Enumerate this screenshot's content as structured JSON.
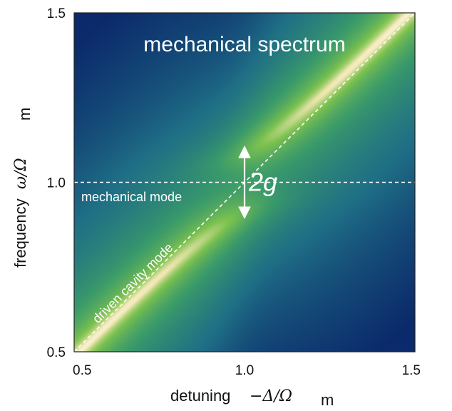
{
  "chart_data": {
    "type": "heatmap",
    "title": "mechanical spectrum",
    "xlabel": {
      "text": "detuning",
      "math": "−Δ/Ω",
      "math_sub": "m"
    },
    "ylabel": {
      "text": "frequency",
      "math": "ω/Ω",
      "math_sub": "m"
    },
    "xlim": [
      0.5,
      1.5
    ],
    "ylim": [
      0.5,
      1.5
    ],
    "x_ticks": [
      "0.5",
      "1.0",
      "1.5"
    ],
    "y_ticks": [
      "0.5",
      "1.0",
      "1.5"
    ],
    "grid": false,
    "colormap": [
      "#0b2a6b",
      "#1f6f86",
      "#3a9a6a",
      "#7cc24f",
      "#f0e6b0",
      "#ffffff"
    ],
    "resonance": {
      "mechanical_frequency": 1.0,
      "coupling_g": 0.09
    },
    "mechanical_mode_line": {
      "y": 1.0,
      "label": "mechanical mode"
    },
    "driven_cavity_mode_line": {
      "slope": 1.0,
      "label": "driven cavity mode"
    },
    "splitting_annotation": {
      "label": "2g",
      "x": 1.0,
      "y_from": 0.91,
      "y_to": 1.09
    }
  }
}
